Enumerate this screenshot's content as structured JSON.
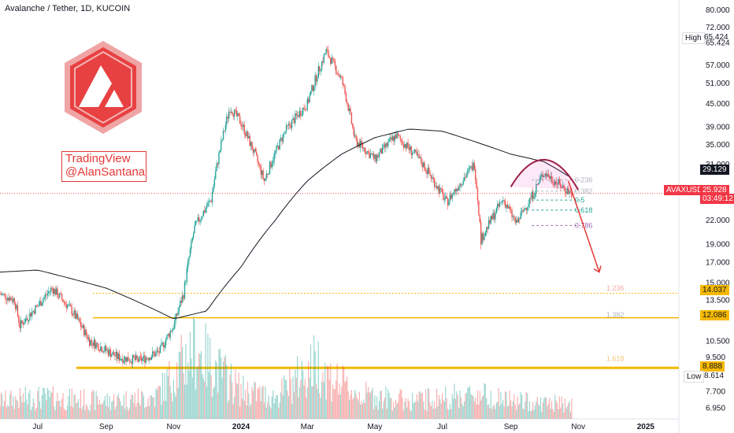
{
  "header": {
    "title": "Avalanche / Tether, 1D, KUCOIN"
  },
  "watermark": {
    "line1": "TradingView",
    "line2": "@AlanSantana"
  },
  "colors": {
    "up": "#26a69a",
    "down": "#ef5350",
    "gold": "#f5b800",
    "ma": "#131722",
    "arc": "#9c1f45",
    "arrow": "#e53935",
    "logo": "#e84142"
  },
  "icons": {
    "logo": "avalanche-logo-icon"
  },
  "price_scale": {
    "ticks": [
      "80.000",
      "72.000",
      "65.424",
      "57.000",
      "51.000",
      "45.000",
      "39.000",
      "35.000",
      "31.000",
      "25.000",
      "22.000",
      "19.000",
      "17.000",
      "15.000",
      "13.500",
      "10.500",
      "9.500",
      "7.700",
      "6.950"
    ]
  },
  "badges": {
    "high_label": "High",
    "high_value": "65.424",
    "low_label": "Low",
    "low_value": "8.614",
    "last_value": "29.129",
    "symbol": "AVAXUSDT",
    "price": "25.928",
    "countdown": "03:49:12",
    "level_14": "14.037",
    "level_12": "12.086",
    "level_8": "8.888"
  },
  "fib_labels": [
    "0.236",
    "0.382",
    "0.5",
    "0.618",
    "0.786",
    "1.236",
    "1.382",
    "1.618"
  ],
  "time_axis": [
    "Jul",
    "Sep",
    "Nov",
    "2024",
    "Mar",
    "May",
    "Jul",
    "Sep",
    "Nov",
    "2025"
  ],
  "chart_data": {
    "type": "candlestick",
    "title": "Avalanche / Tether, 1D, KUCOIN",
    "yscale": "log",
    "ylim": [
      6.5,
      85
    ],
    "x_range": [
      "2023-05-28",
      "2025-01-31"
    ],
    "current_price": 25.928,
    "series": [
      {
        "name": "price",
        "x": [
          "2023-05-28",
          "2023-06-10",
          "2023-06-15",
          "2023-07-01",
          "2023-07-14",
          "2023-08-01",
          "2023-08-17",
          "2023-09-11",
          "2023-10-01",
          "2023-10-19",
          "2023-11-01",
          "2023-11-10",
          "2023-11-20",
          "2023-12-05",
          "2023-12-22",
          "2024-01-01",
          "2024-01-22",
          "2024-02-10",
          "2024-03-01",
          "2024-03-18",
          "2024-04-01",
          "2024-04-13",
          "2024-05-01",
          "2024-05-20",
          "2024-06-10",
          "2024-07-05",
          "2024-07-30",
          "2024-08-05",
          "2024-08-25",
          "2024-09-06",
          "2024-09-20",
          "2024-10-01",
          "2024-10-14",
          "2024-10-26"
        ],
        "values": [
          14.0,
          13.5,
          11.5,
          13.0,
          14.5,
          12.6,
          10.5,
          9.5,
          9.3,
          9.8,
          11.5,
          14.0,
          21.0,
          25.0,
          44.0,
          40.0,
          28.0,
          38.0,
          45.0,
          62.0,
          52.0,
          36.0,
          32.0,
          37.0,
          32.0,
          24.5,
          31.0,
          19.5,
          25.0,
          21.5,
          25.5,
          29.5,
          27.5,
          25.9
        ]
      },
      {
        "name": "moving-average",
        "x": [
          "2023-05-28",
          "2023-07-01",
          "2023-09-01",
          "2023-11-01",
          "2023-12-01",
          "2024-01-01",
          "2024-02-01",
          "2024-03-01",
          "2024-04-01",
          "2024-05-01",
          "2024-06-01",
          "2024-07-01",
          "2024-08-01",
          "2024-09-01",
          "2024-10-01",
          "2024-10-26"
        ],
        "values": [
          16.0,
          16.2,
          14.5,
          12.0,
          12.6,
          16.5,
          22.0,
          28.0,
          33.0,
          36.5,
          38.5,
          38.0,
          35.5,
          33.0,
          31.5,
          28.5
        ]
      }
    ],
    "horizontal_levels": [
      14.037,
      12.086,
      8.888
    ],
    "fibonacci": {
      "levels": [
        "0.236",
        "0.382",
        "0.5",
        "0.618",
        "0.786",
        "1.236",
        "1.382",
        "1.618"
      ],
      "prices": [
        28.2,
        26.3,
        24.9,
        23.4,
        21.3,
        14.5,
        12.3,
        9.4
      ]
    },
    "volume": {
      "x": [
        "2023-05-28",
        "2023-07-01",
        "2023-09-01",
        "2023-10-15",
        "2023-11-05",
        "2023-11-20",
        "2023-12-10",
        "2024-01-01",
        "2024-02-01",
        "2024-03-10",
        "2024-03-20",
        "2024-04-15",
        "2024-06-01",
        "2024-08-05",
        "2024-09-01",
        "2024-10-26"
      ],
      "values": [
        0.5,
        0.6,
        0.5,
        0.6,
        1.4,
        2.0,
        1.4,
        0.8,
        0.6,
        1.6,
        1.2,
        0.7,
        0.5,
        0.7,
        0.5,
        0.4
      ]
    }
  }
}
